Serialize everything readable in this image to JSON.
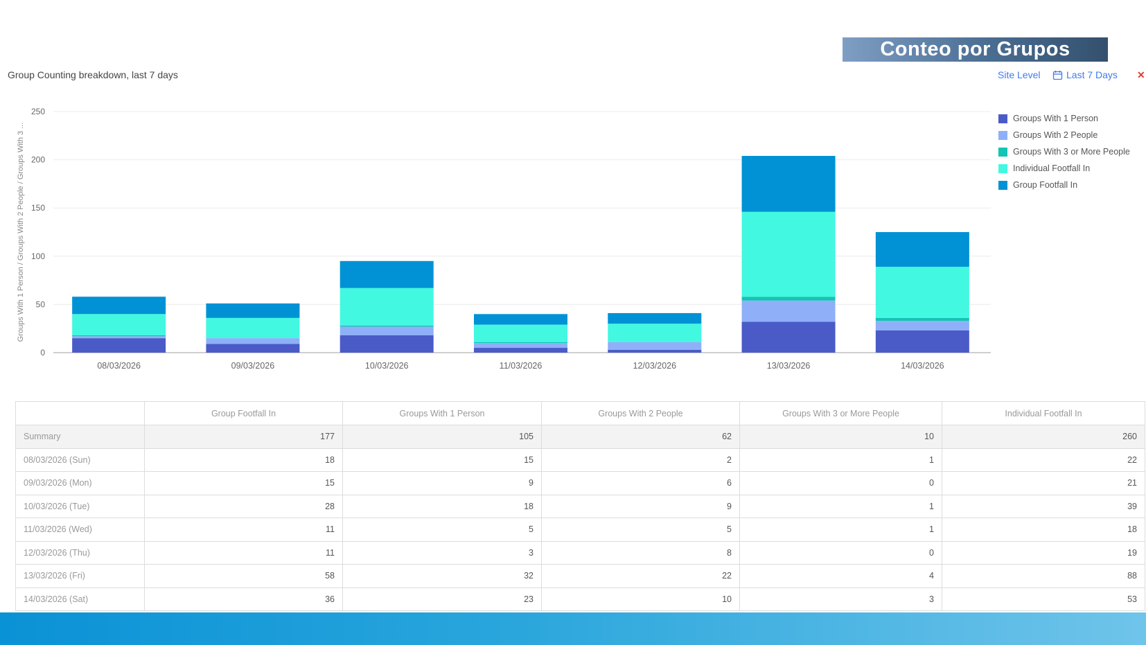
{
  "banner": {
    "title": "Conteo por Grupos"
  },
  "widget": {
    "title": "Group Counting breakdown, last 7 days",
    "site_level": "Site Level",
    "date_range": "Last 7 Days",
    "close_glyph": "✕",
    "calendar_icon": "calendar-icon"
  },
  "chart_data": {
    "type": "bar",
    "stacked": true,
    "categories": [
      "08/03/2026",
      "09/03/2026",
      "10/03/2026",
      "11/03/2026",
      "12/03/2026",
      "13/03/2026",
      "14/03/2026"
    ],
    "series": [
      {
        "name": "Groups With 1 Person",
        "color": "#4a5bc8",
        "values": [
          15,
          9,
          18,
          5,
          3,
          32,
          23
        ]
      },
      {
        "name": "Groups With 2 People",
        "color": "#8fb0f8",
        "values": [
          2,
          6,
          9,
          5,
          8,
          22,
          10
        ]
      },
      {
        "name": "Groups With 3 or More People",
        "color": "#14c4b4",
        "values": [
          1,
          0,
          1,
          1,
          0,
          4,
          3
        ]
      },
      {
        "name": "Individual Footfall In",
        "color": "#42f8e0",
        "values": [
          22,
          21,
          39,
          18,
          19,
          88,
          53
        ]
      },
      {
        "name": "Group Footfall In",
        "color": "#0092d4",
        "values": [
          18,
          15,
          28,
          11,
          11,
          58,
          36
        ]
      }
    ],
    "ylabel": "Groups With 1 Person / Groups With 2 People / Groups With 3 ...",
    "ylim": [
      0,
      250
    ],
    "yticks": [
      0,
      50,
      100,
      150,
      200,
      250
    ],
    "grid": true,
    "legend_position": "right"
  },
  "table": {
    "headers": [
      "",
      "Group Footfall In",
      "Groups With 1 Person",
      "Groups With 2 People",
      "Groups With 3 or More People",
      "Individual Footfall In"
    ],
    "rows": [
      [
        "Summary",
        "177",
        "105",
        "62",
        "10",
        "260"
      ],
      [
        "08/03/2026 (Sun)",
        "18",
        "15",
        "2",
        "1",
        "22"
      ],
      [
        "09/03/2026 (Mon)",
        "15",
        "9",
        "6",
        "0",
        "21"
      ],
      [
        "10/03/2026 (Tue)",
        "28",
        "18",
        "9",
        "1",
        "39"
      ],
      [
        "11/03/2026 (Wed)",
        "11",
        "5",
        "5",
        "1",
        "18"
      ],
      [
        "12/03/2026 (Thu)",
        "11",
        "3",
        "8",
        "0",
        "19"
      ],
      [
        "13/03/2026 (Fri)",
        "58",
        "32",
        "22",
        "4",
        "88"
      ],
      [
        "14/03/2026 (Sat)",
        "36",
        "23",
        "10",
        "3",
        "53"
      ]
    ]
  }
}
